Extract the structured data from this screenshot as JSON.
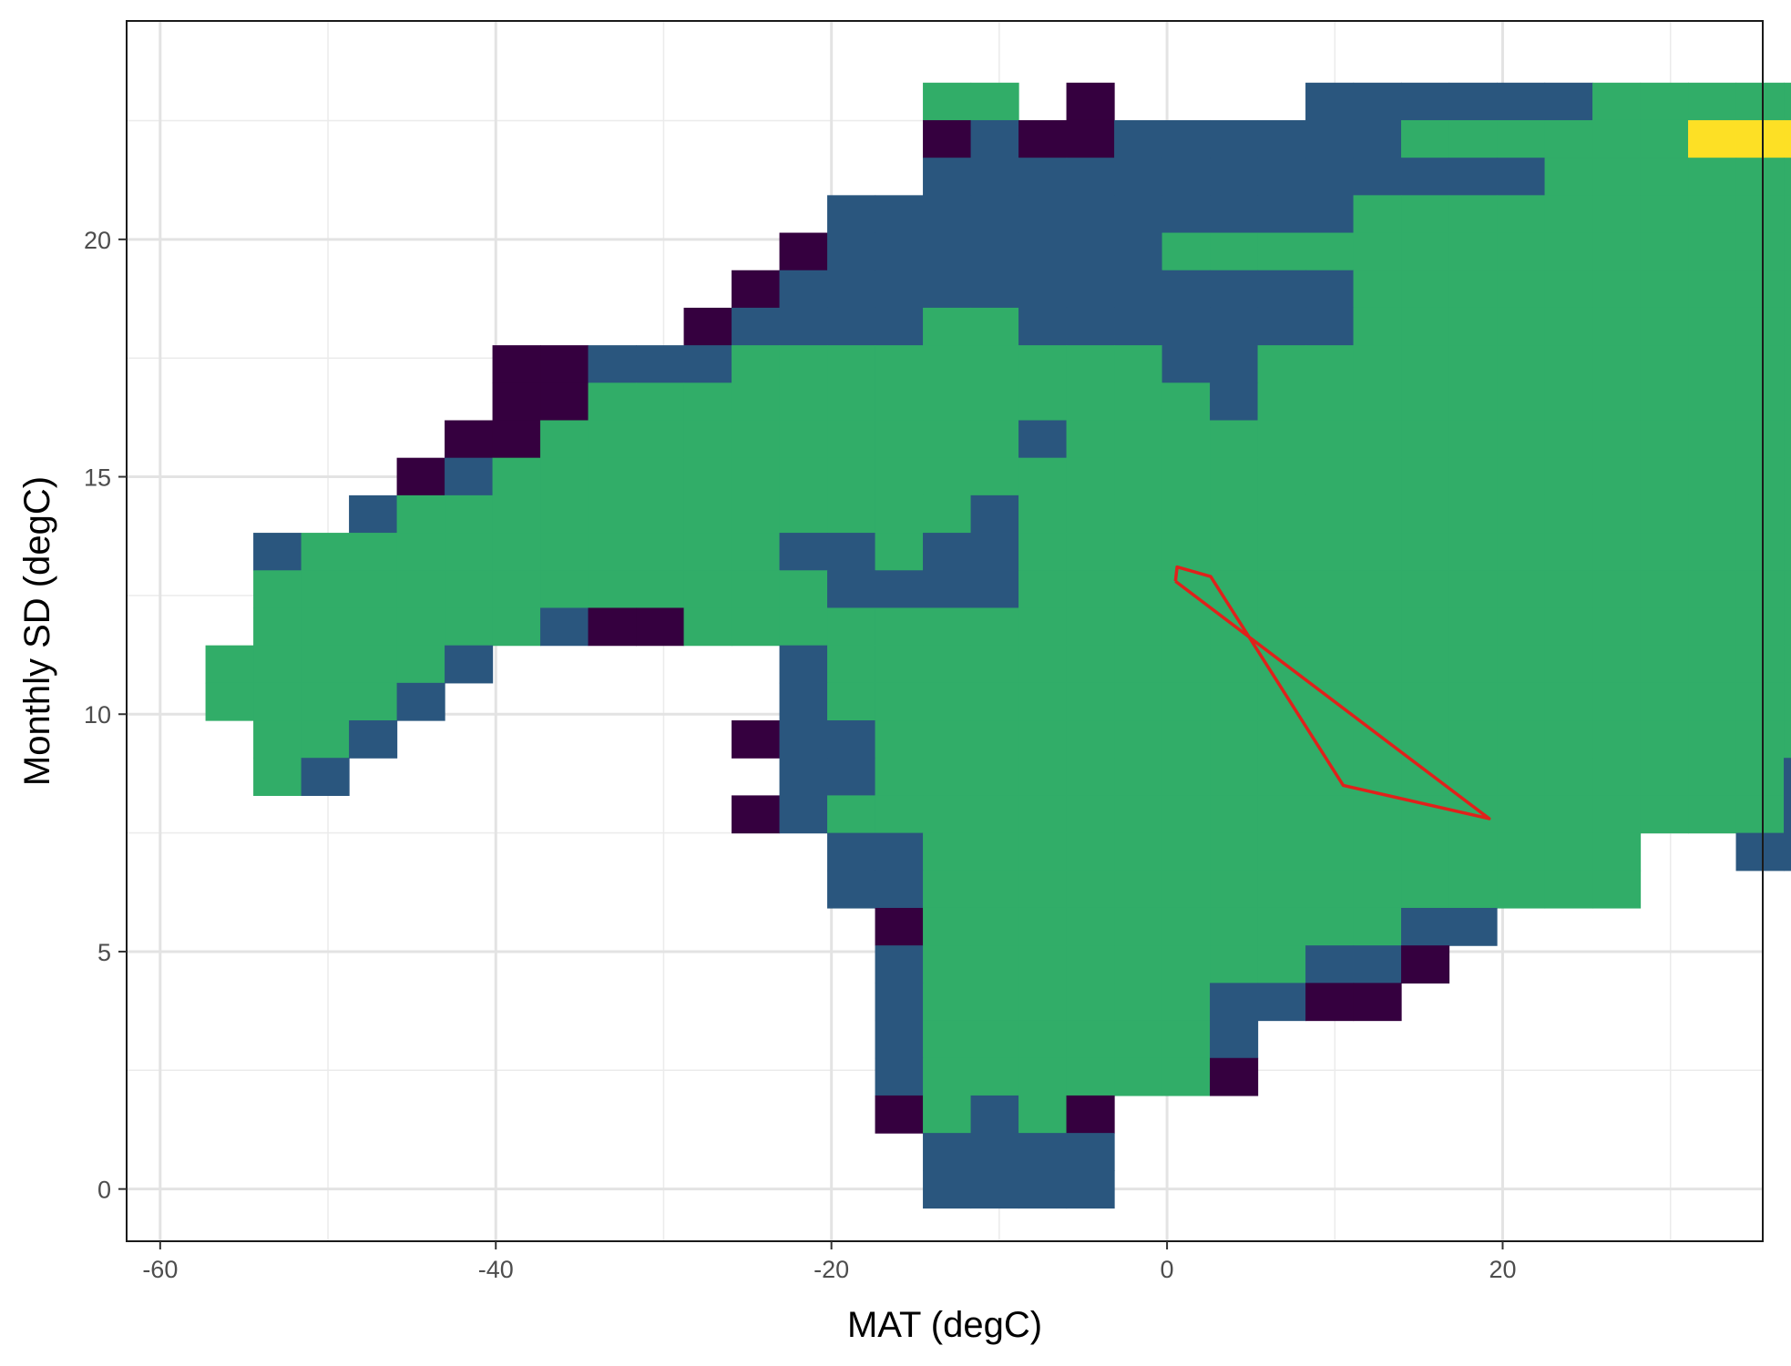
{
  "chart_data": {
    "type": "heatmap",
    "title": "",
    "xlabel": "MAT (degC)",
    "ylabel": "Monthly SD (degC)",
    "xlim": [
      -62,
      35.5
    ],
    "ylim": [
      -1.1,
      24.6
    ],
    "x_ticks": [
      -60,
      -40,
      -20,
      0,
      20
    ],
    "x_tick_labels": [
      "-60",
      "-40",
      "-20",
      "0",
      "20"
    ],
    "y_ticks": [
      0,
      5,
      10,
      15,
      20
    ],
    "y_tick_labels": [
      "0",
      "5",
      "10",
      "15",
      "20"
    ],
    "grid": true,
    "legend": "none",
    "palette": {
      "A": "#35003f",
      "B": "#2a567e",
      "C": "#31ad68",
      "D": "#fde025"
    },
    "bins": {
      "x_start": -57.3,
      "x_width": 2.85,
      "y_start": -0.4,
      "y_height": 0.79
    },
    "rows": [
      "...............CC.A....BBBBBBCCCCCCDDB",
      "...............ABAABBBBBBCCCCCCDDDDB",
      "...............BBBBBBBBBBBBBCCCCCCCDB",
      ".............BBBBBBBBBBBCCCCCCCCCCCCCC",
      "............ABBBBBBBCCCCCCCCCCCCCCCCCC",
      "...........ABBBBBBBBBBBBCCCCCCCCCCCCCC",
      "..........ABBBBCCBBBBBBBCCCCCCCCCCCCCCCC",
      "......AABBBCCCCCCCCCBBCCCCCCCCCCCCCCCCC",
      "......AACCCCCCCCCCCCCBCCCCCCCCCCCCCCCCC",
      ".....AACCCCCCCCCCBCCCCCCCCCCCCCCCCCCCCB",
      "....ABCCCCCCCCCCCCCCCCCCCCCCCCCCCCCCCCCA",
      "...BCCCCCCCCCCCCBCCCCCCCCCCCCCCCCCCCCCB",
      ".BCCCCCCCCCCBBCBBCCCCCCCCCCCCCCCCCCCCBB",
      ".CCCCCCCCCCCCBBBBCCCCCCCCCCCCCCCCCCCCBA",
      ".CCCCCCBAACCCCCCCCCCCCCCCCCCCCCCCCCCA",
      "CCCCCB......BCCCCCCCCCCCCCCCCCCCCCCCB",
      "CCCCB.......BCCCCCCCCCCCCCCCCCCCCCCC",
      ".CCB.......ABBCCCCCCCCCCCCCCCCCCCCB",
      ".CB.........BBCCCCCCCCCCCCCCCCCCCBBA",
      "...........ABCCCCCCCCCCCCCCCCCCCCBBBA",
      ".............BBCCCCCCCCCCCCCCC..BBA",
      ".............BBCCCCCCCCCCCCCCC....A",
      "..............ACCCCCCCCCCBB",
      "..............BCCCCCCCCBBA",
      "..............BCCCCCCBBAA",
      "..............BCCCCCCB",
      "..............BCCCCCCA",
      "..............ACBCA",
      "...............BBBB",
      "...............BBBB"
    ],
    "overlay_polygon": {
      "color": "#e0211b",
      "points": [
        [
          0.5,
          12.8
        ],
        [
          0.6,
          13.1
        ],
        [
          2.6,
          12.9
        ],
        [
          10.5,
          8.5
        ],
        [
          19.2,
          7.8
        ],
        [
          0.5,
          12.8
        ]
      ]
    }
  }
}
